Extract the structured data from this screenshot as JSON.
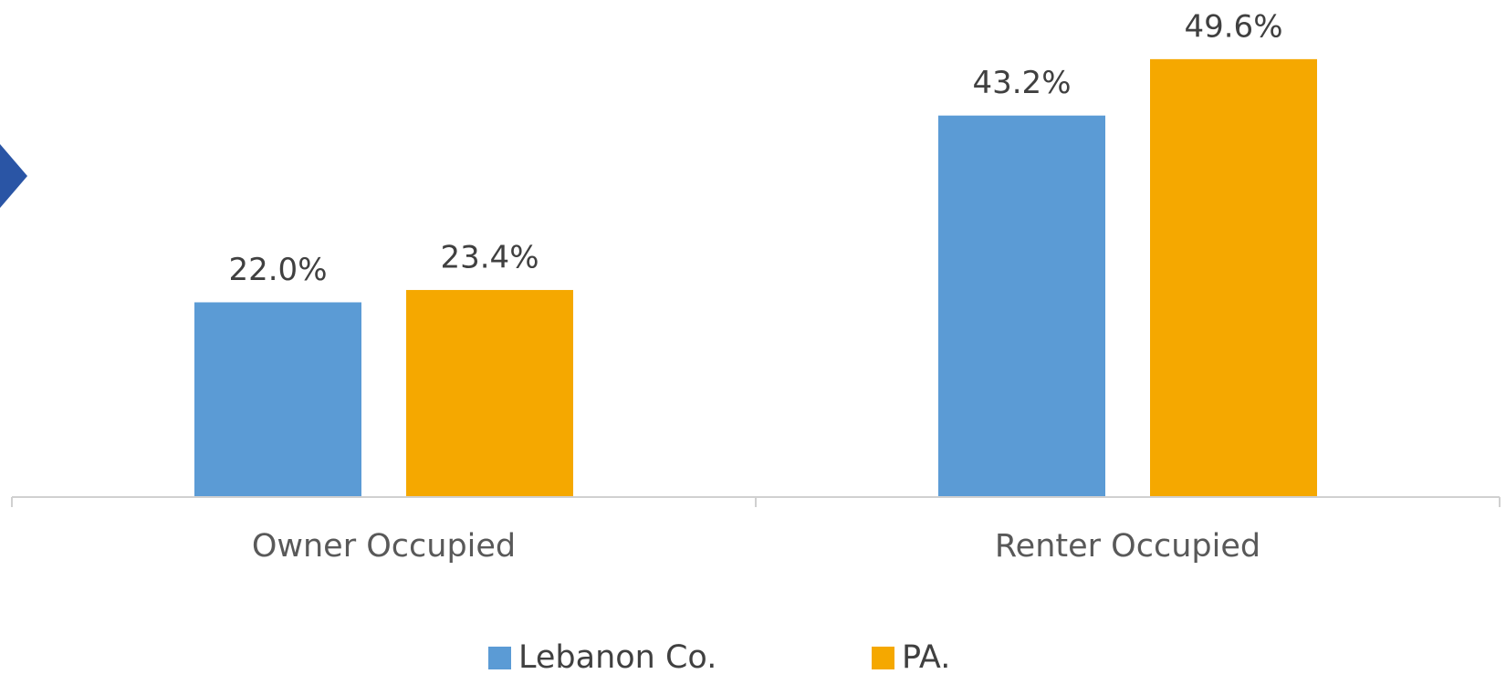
{
  "chart_data": {
    "type": "bar",
    "categories": [
      "Owner Occupied",
      "Renter Occupied"
    ],
    "series": [
      {
        "name": "Lebanon Co.",
        "color": "#5b9bd5",
        "values": [
          22.0,
          43.2
        ],
        "value_labels": [
          "22.0%",
          "43.2%"
        ]
      },
      {
        "name": "PA.",
        "color": "#f5a800",
        "values": [
          23.4,
          49.6
        ],
        "value_labels": [
          "23.4%",
          "49.6%"
        ]
      }
    ],
    "legend": "bottom"
  }
}
